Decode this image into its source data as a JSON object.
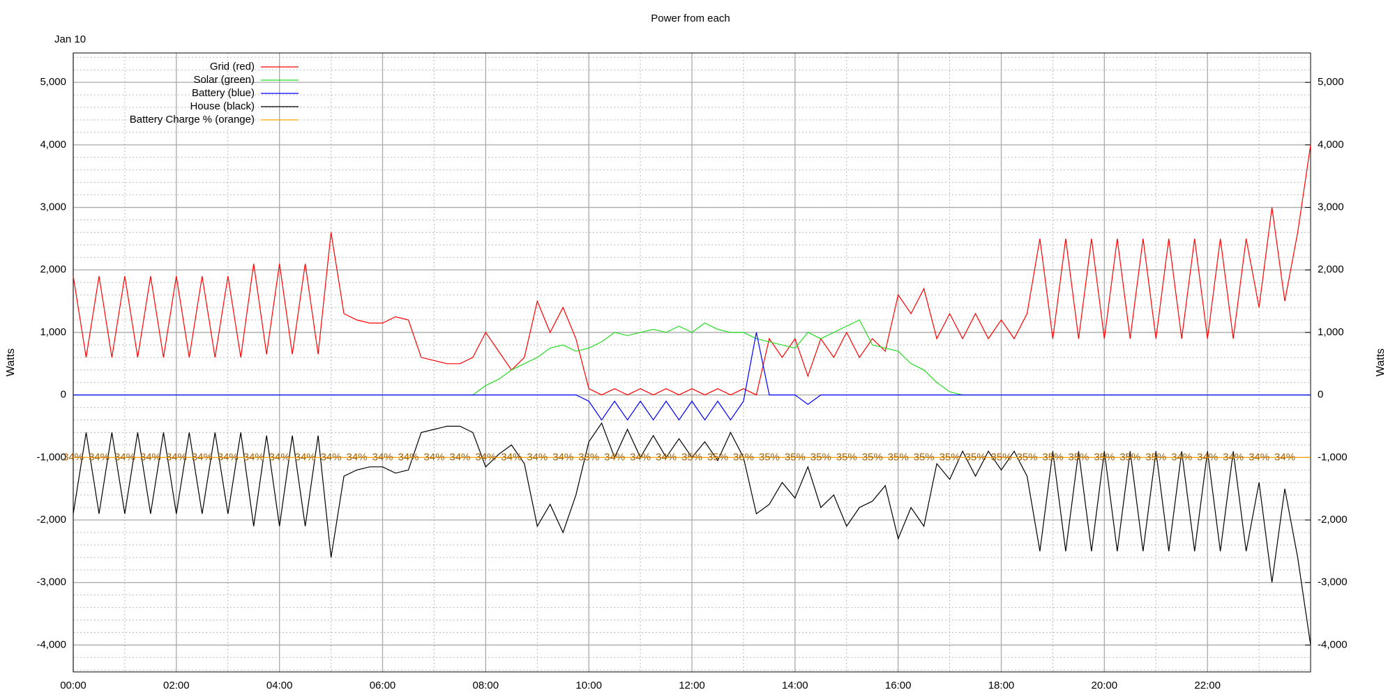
{
  "chart_data": {
    "type": "line",
    "title": "Power from each",
    "date_label": "Jan 10",
    "y_label": "Watts",
    "y2_label": "Watts",
    "legend": "top-left",
    "grid": true,
    "x_minor_step": 1,
    "y_minor_step": 200,
    "xlim": [
      0,
      24
    ],
    "xticks": [
      {
        "value": 0,
        "label": "00:00"
      },
      {
        "value": 2,
        "label": "02:00"
      },
      {
        "value": 4,
        "label": "04:00"
      },
      {
        "value": 6,
        "label": "06:00"
      },
      {
        "value": 8,
        "label": "08:00"
      },
      {
        "value": 10,
        "label": "10:00"
      },
      {
        "value": 12,
        "label": "12:00"
      },
      {
        "value": 14,
        "label": "14:00"
      },
      {
        "value": 16,
        "label": "16:00"
      },
      {
        "value": 18,
        "label": "18:00"
      },
      {
        "value": 20,
        "label": "20:00"
      },
      {
        "value": 22,
        "label": "22:00"
      }
    ],
    "ylim": [
      -4430,
      5470
    ],
    "yticks": [
      {
        "value": -4000,
        "label": "-4,000"
      },
      {
        "value": -3000,
        "label": "-3,000"
      },
      {
        "value": -2000,
        "label": "-2,000"
      },
      {
        "value": -1000,
        "label": "-1,000"
      },
      0,
      {
        "value": 1000,
        "label": "1,000"
      },
      {
        "value": 2000,
        "label": "2,000"
      },
      {
        "value": 3000,
        "label": "3,000"
      },
      {
        "value": 4000,
        "label": "4,000"
      },
      {
        "value": 5000,
        "label": "5,000"
      }
    ],
    "y2lim": [
      -4430,
      5470
    ],
    "y2ticks": [
      {
        "value": -4000,
        "label": "-4,000"
      },
      {
        "value": -3000,
        "label": "-3,000"
      },
      {
        "value": -2000,
        "label": "-2,000"
      },
      {
        "value": -1000,
        "label": "-1,000"
      },
      0,
      {
        "value": 1000,
        "label": "1,000"
      },
      {
        "value": 2000,
        "label": "2,000"
      },
      {
        "value": 3000,
        "label": "3,000"
      },
      {
        "value": 4000,
        "label": "4,000"
      },
      {
        "value": 5000,
        "label": "5,000"
      }
    ],
    "x": [
      0,
      0.25,
      0.5,
      0.75,
      1,
      1.25,
      1.5,
      1.75,
      2,
      2.25,
      2.5,
      2.75,
      3,
      3.25,
      3.5,
      3.75,
      4,
      4.25,
      4.5,
      4.75,
      5,
      5.25,
      5.5,
      5.75,
      6,
      6.25,
      6.5,
      6.75,
      7,
      7.25,
      7.5,
      7.75,
      8,
      8.25,
      8.5,
      8.75,
      9,
      9.25,
      9.5,
      9.75,
      10,
      10.25,
      10.5,
      10.75,
      11,
      11.25,
      11.5,
      11.75,
      12,
      12.25,
      12.5,
      12.75,
      13,
      13.25,
      13.5,
      13.75,
      14,
      14.25,
      14.5,
      14.75,
      15,
      15.25,
      15.5,
      15.75,
      16,
      16.25,
      16.5,
      16.75,
      17,
      17.25,
      17.5,
      17.75,
      18,
      18.25,
      18.5,
      18.75,
      19,
      19.25,
      19.5,
      19.75,
      20,
      20.25,
      20.5,
      20.75,
      21,
      21.25,
      21.5,
      21.75,
      22,
      22.25,
      22.5,
      22.75,
      23,
      23.25,
      23.5,
      23.75,
      24
    ],
    "series": [
      {
        "name": "Grid (red)",
        "color": "#ff0000",
        "values": [
          1900,
          600,
          1900,
          600,
          1900,
          600,
          1900,
          600,
          1900,
          600,
          1900,
          600,
          1900,
          600,
          2100,
          650,
          2100,
          650,
          2100,
          650,
          2600,
          1300,
          1200,
          1150,
          1150,
          1250,
          1200,
          600,
          550,
          500,
          500,
          600,
          1000,
          700,
          400,
          600,
          1500,
          1000,
          1400,
          900,
          100,
          0,
          100,
          0,
          100,
          0,
          100,
          0,
          100,
          0,
          100,
          0,
          100,
          0,
          900,
          600,
          900,
          300,
          900,
          600,
          1000,
          600,
          900,
          700,
          1600,
          1300,
          1700,
          900,
          1300,
          900,
          1300,
          900,
          1200,
          900,
          1300,
          2500,
          900,
          2500,
          900,
          2500,
          900,
          2500,
          900,
          2500,
          900,
          2500,
          900,
          2500,
          900,
          2500,
          900,
          2500,
          1400,
          3000,
          1500,
          2600,
          4000
        ]
      },
      {
        "name": "Solar (green)",
        "color": "#22dd22",
        "values": [
          0,
          0,
          0,
          0,
          0,
          0,
          0,
          0,
          0,
          0,
          0,
          0,
          0,
          0,
          0,
          0,
          0,
          0,
          0,
          0,
          0,
          0,
          0,
          0,
          0,
          0,
          0,
          0,
          0,
          0,
          0,
          0,
          150,
          250,
          400,
          500,
          600,
          750,
          800,
          700,
          750,
          850,
          1000,
          950,
          1000,
          1050,
          1000,
          1100,
          1000,
          1150,
          1050,
          1000,
          1000,
          900,
          850,
          800,
          750,
          1000,
          900,
          1000,
          1100,
          1200,
          800,
          750,
          700,
          500,
          400,
          200,
          50,
          0,
          0,
          0,
          0,
          0,
          0,
          0,
          0,
          0,
          0,
          0,
          0,
          0,
          0,
          0,
          0,
          0,
          0,
          0,
          0,
          0,
          0,
          0,
          0,
          0,
          0,
          0,
          0
        ]
      },
      {
        "name": "Battery (blue)",
        "color": "#0000ff",
        "values": [
          0,
          0,
          0,
          0,
          0,
          0,
          0,
          0,
          0,
          0,
          0,
          0,
          0,
          0,
          0,
          0,
          0,
          0,
          0,
          0,
          0,
          0,
          0,
          0,
          0,
          0,
          0,
          0,
          0,
          0,
          0,
          0,
          0,
          0,
          0,
          0,
          0,
          0,
          0,
          0,
          -100,
          -400,
          -100,
          -400,
          -100,
          -400,
          -100,
          -400,
          -100,
          -400,
          -100,
          -400,
          -100,
          1000,
          0,
          0,
          0,
          -150,
          0,
          0,
          0,
          0,
          0,
          0,
          0,
          0,
          0,
          0,
          0,
          0,
          0,
          0,
          0,
          0,
          0,
          0,
          0,
          0,
          0,
          0,
          0,
          0,
          0,
          0,
          0,
          0,
          0,
          0,
          0,
          0,
          0,
          0,
          0,
          0,
          0,
          0,
          0
        ]
      },
      {
        "name": "House (black)",
        "color": "#000000",
        "values": [
          -1900,
          -600,
          -1900,
          -600,
          -1900,
          -600,
          -1900,
          -600,
          -1900,
          -600,
          -1900,
          -600,
          -1900,
          -600,
          -2100,
          -650,
          -2100,
          -650,
          -2100,
          -650,
          -2600,
          -1300,
          -1200,
          -1150,
          -1150,
          -1250,
          -1200,
          -600,
          -550,
          -500,
          -500,
          -600,
          -1150,
          -950,
          -800,
          -1100,
          -2100,
          -1750,
          -2200,
          -1600,
          -750,
          -450,
          -1000,
          -550,
          -1000,
          -650,
          -1000,
          -700,
          -1000,
          -750,
          -1050,
          -600,
          -1000,
          -1900,
          -1750,
          -1400,
          -1650,
          -1150,
          -1800,
          -1600,
          -2100,
          -1800,
          -1700,
          -1450,
          -2300,
          -1800,
          -2100,
          -1100,
          -1350,
          -900,
          -1300,
          -900,
          -1200,
          -900,
          -1300,
          -2500,
          -900,
          -2500,
          -900,
          -2500,
          -900,
          -2500,
          -900,
          -2500,
          -900,
          -2500,
          -900,
          -2500,
          -900,
          -2500,
          -900,
          -2500,
          -1400,
          -3000,
          -1500,
          -2600,
          -4000
        ]
      },
      {
        "name": "Battery Charge % (orange)",
        "color": "#ffa500",
        "label_color": "#a0600a",
        "y_position": -1000,
        "x": [
          0,
          0.5,
          1,
          1.5,
          2,
          2.5,
          3,
          3.5,
          4,
          4.5,
          5,
          5.5,
          6,
          6.5,
          7,
          7.5,
          8,
          8.5,
          9,
          9.5,
          10,
          10.5,
          11,
          11.5,
          12,
          12.5,
          13,
          13.5,
          14,
          14.5,
          15,
          15.5,
          16,
          16.5,
          17,
          17.5,
          18,
          18.5,
          19,
          19.5,
          20,
          20.5,
          21,
          21.5,
          22,
          22.5,
          23,
          23.5
        ],
        "values": [
          34,
          34,
          34,
          34,
          34,
          34,
          34,
          34,
          34,
          34,
          34,
          34,
          34,
          34,
          34,
          34,
          34,
          34,
          34,
          34,
          33,
          34,
          34,
          34,
          35,
          35,
          36,
          35,
          35,
          35,
          35,
          35,
          35,
          35,
          35,
          35,
          35,
          35,
          35,
          35,
          35,
          35,
          35,
          34,
          34,
          34,
          34,
          34
        ],
        "value_labels": [
          "34%",
          "34%",
          "34%",
          "34%",
          "34%",
          "34%",
          "34%",
          "34%",
          "34%",
          "34%",
          "34%",
          "34%",
          "34%",
          "34%",
          "34%",
          "34%",
          "34%",
          "34%",
          "34%",
          "34%",
          "33%",
          "34%",
          "34%",
          "34%",
          "35%",
          "35%",
          "36%",
          "35%",
          "35%",
          "35%",
          "35%",
          "35%",
          "35%",
          "35%",
          "35%",
          "35%",
          "35%",
          "35%",
          "35%",
          "35%",
          "35%",
          "35%",
          "35%",
          "34%",
          "34%",
          "34%",
          "34%",
          "34%"
        ]
      }
    ]
  }
}
